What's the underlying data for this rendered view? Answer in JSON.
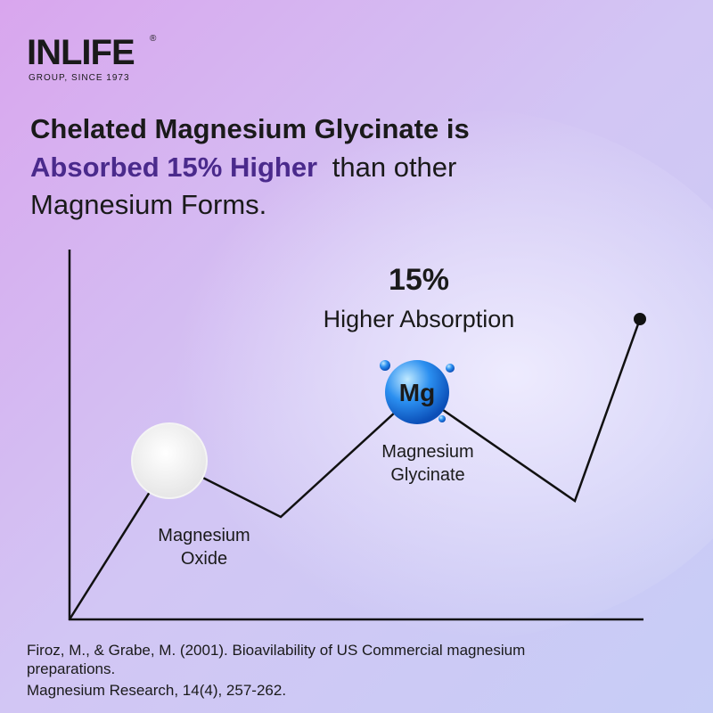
{
  "brand": {
    "name": "INLIFE",
    "trademark": "®",
    "tagline": "GROUP, SINCE 1973"
  },
  "headline": {
    "line1": "Chelated Magnesium Glycinate is",
    "highlight": "Absorbed 15% Higher",
    "line2_rest": "than other",
    "line3": "Magnesium Forms."
  },
  "callout": {
    "value": "15%",
    "label": "Higher Absorption"
  },
  "mg_symbol": "Mg",
  "oxide_label": [
    "Magnesium",
    "Oxide"
  ],
  "glycinate_label": [
    "Magnesium",
    "Glycinate"
  ],
  "reference": [
    "Firoz, M., & Grabe, M. (2001). Bioavilability of US Commercial magnesium",
    "preparations.",
    "Magnesium Research, 14(4), 257-262."
  ]
}
